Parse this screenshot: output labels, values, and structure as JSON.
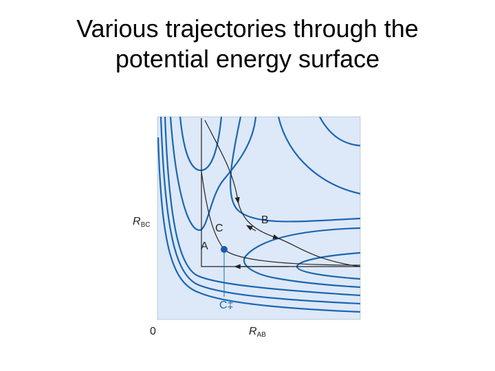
{
  "title": {
    "lines": [
      "Various trajectories through the",
      "potential energy surface"
    ]
  },
  "axes": {
    "y": {
      "main": "R",
      "sub": "BC"
    },
    "x": {
      "main": "R",
      "sub": "AB"
    },
    "origin": "0"
  },
  "labels": {
    "a": "A",
    "b": "B",
    "c": "C",
    "transition": "C‡"
  }
}
